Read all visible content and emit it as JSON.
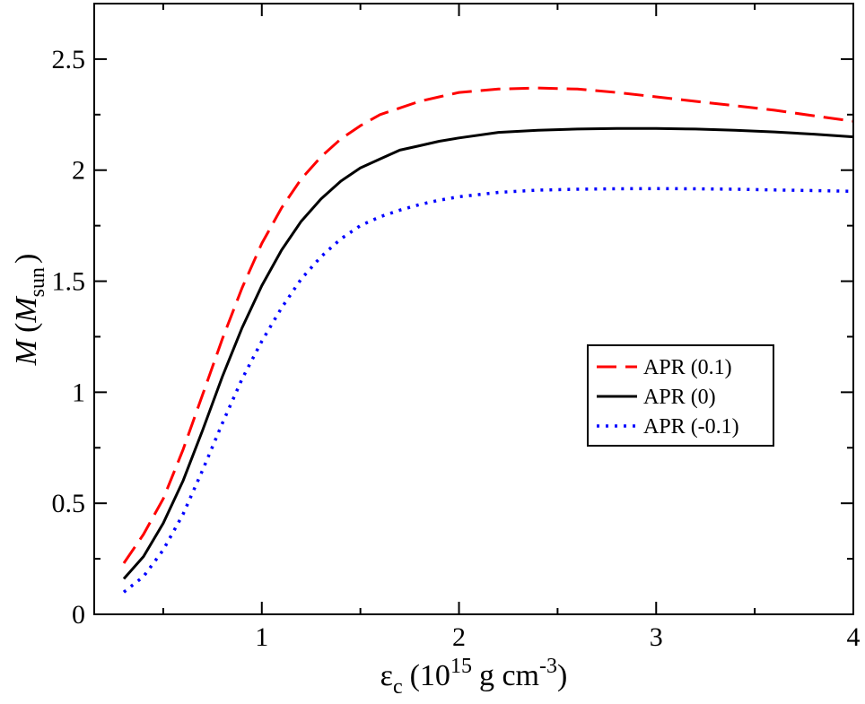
{
  "chart_data": {
    "type": "line",
    "xlabel": {
      "symbol": "ε",
      "sub": "c",
      "open": "(10",
      "exp": "15",
      "unit": "g cm",
      "unit_exp": "-3",
      "close": ")"
    },
    "ylabel": {
      "symbol": "M",
      "open": "(",
      "unit_symbol": "M",
      "unit_sub": "sun",
      "close": ")"
    },
    "xlim": [
      0.15,
      4.0
    ],
    "ylim": [
      0,
      2.75
    ],
    "xticks": [
      1,
      2,
      3,
      4
    ],
    "xtick_labels": [
      "1",
      "2",
      "3",
      "4"
    ],
    "yticks": [
      0,
      0.5,
      1,
      1.5,
      2,
      2.5
    ],
    "ytick_labels": [
      "0",
      "0.5",
      "1",
      "1.5",
      "2",
      "2.5"
    ],
    "x_minor_step": 0.5,
    "y_minor_step": 0.25,
    "legend_position": "right-middle",
    "series": [
      {
        "name": "APR (0.1)",
        "color": "#ff0000",
        "style": "dashed",
        "x": [
          0.3,
          0.4,
          0.5,
          0.6,
          0.7,
          0.8,
          0.9,
          1.0,
          1.1,
          1.2,
          1.3,
          1.4,
          1.5,
          1.6,
          1.7,
          1.8,
          1.9,
          2.0,
          2.2,
          2.4,
          2.6,
          2.8,
          3.0,
          3.2,
          3.4,
          3.6,
          3.8,
          4.0
        ],
        "y": [
          0.23,
          0.36,
          0.52,
          0.74,
          0.99,
          1.24,
          1.47,
          1.67,
          1.83,
          1.96,
          2.06,
          2.14,
          2.2,
          2.25,
          2.28,
          2.31,
          2.33,
          2.35,
          2.365,
          2.37,
          2.365,
          2.35,
          2.33,
          2.31,
          2.29,
          2.27,
          2.245,
          2.22
        ]
      },
      {
        "name": "APR (0)",
        "color": "#000000",
        "style": "solid",
        "x": [
          0.3,
          0.4,
          0.5,
          0.6,
          0.7,
          0.8,
          0.9,
          1.0,
          1.1,
          1.2,
          1.3,
          1.4,
          1.5,
          1.6,
          1.7,
          1.8,
          1.9,
          2.0,
          2.2,
          2.4,
          2.6,
          2.8,
          3.0,
          3.2,
          3.4,
          3.6,
          3.8,
          4.0
        ],
        "y": [
          0.16,
          0.26,
          0.41,
          0.6,
          0.83,
          1.07,
          1.29,
          1.48,
          1.64,
          1.77,
          1.87,
          1.95,
          2.01,
          2.05,
          2.09,
          2.11,
          2.13,
          2.145,
          2.17,
          2.18,
          2.185,
          2.188,
          2.188,
          2.185,
          2.18,
          2.172,
          2.162,
          2.15
        ]
      },
      {
        "name": "APR (-0.1)",
        "color": "#0000ff",
        "style": "dotted",
        "x": [
          0.3,
          0.4,
          0.5,
          0.6,
          0.7,
          0.8,
          0.9,
          1.0,
          1.1,
          1.2,
          1.3,
          1.4,
          1.5,
          1.6,
          1.7,
          1.8,
          1.9,
          2.0,
          2.2,
          2.4,
          2.6,
          2.8,
          3.0,
          3.2,
          3.4,
          3.6,
          3.8,
          4.0
        ],
        "y": [
          0.1,
          0.17,
          0.29,
          0.45,
          0.65,
          0.86,
          1.06,
          1.23,
          1.38,
          1.51,
          1.61,
          1.69,
          1.75,
          1.79,
          1.82,
          1.845,
          1.865,
          1.88,
          1.9,
          1.91,
          1.914,
          1.916,
          1.917,
          1.916,
          1.914,
          1.911,
          1.908,
          1.905
        ]
      }
    ]
  }
}
